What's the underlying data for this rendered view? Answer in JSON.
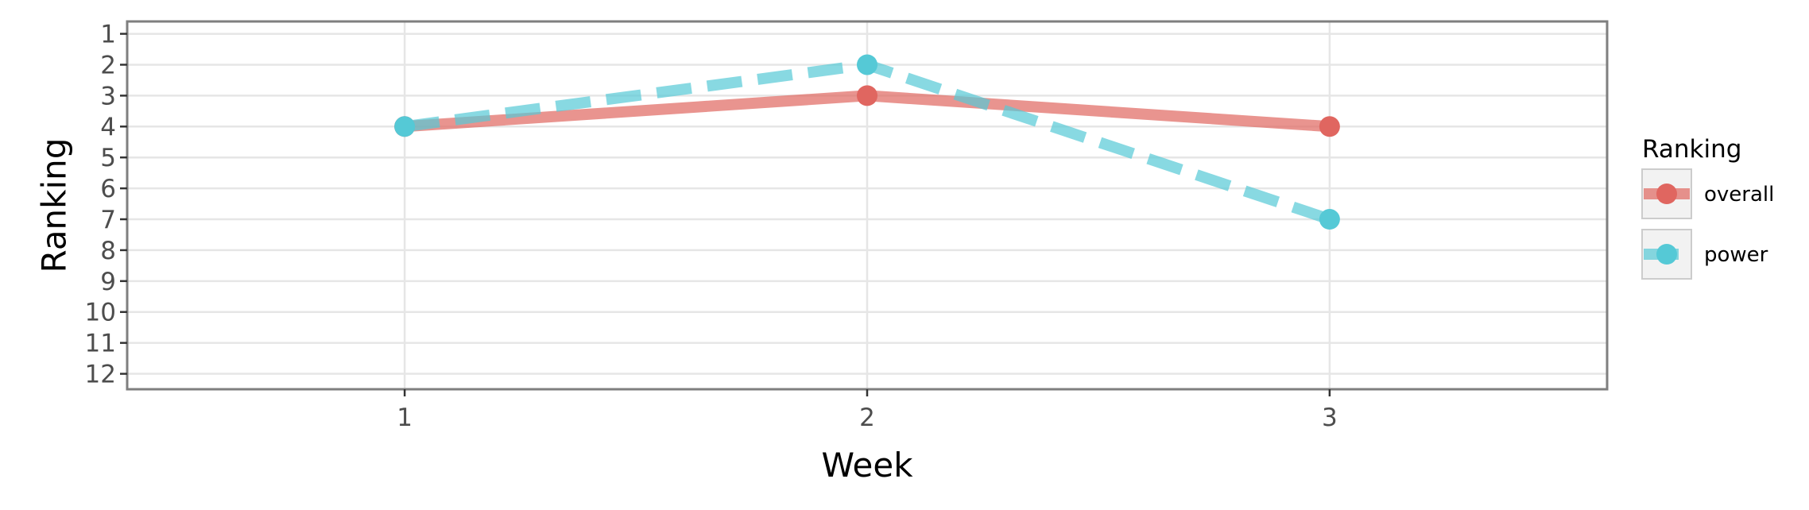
{
  "chart_data": {
    "type": "line",
    "xlabel": "Week",
    "ylabel": "Ranking",
    "x": [
      1,
      2,
      3
    ],
    "x_tick_labels": [
      "1",
      "2",
      "3"
    ],
    "xlim": [
      0.4,
      3.6
    ],
    "y_tick_labels": [
      "1",
      "2",
      "3",
      "4",
      "5",
      "6",
      "7",
      "8",
      "9",
      "10",
      "11",
      "12"
    ],
    "ylim": [
      0.6,
      12.5
    ],
    "y_reversed": true,
    "grid": true,
    "legend": {
      "title": "Ranking",
      "position": "right"
    },
    "series": [
      {
        "name": "overall",
        "values": [
          4,
          3,
          4
        ],
        "color": "#e06660",
        "line_style": "solid"
      },
      {
        "name": "power",
        "values": [
          4,
          2,
          7
        ],
        "color": "#55c9d6",
        "line_style": "dashed"
      }
    ]
  }
}
